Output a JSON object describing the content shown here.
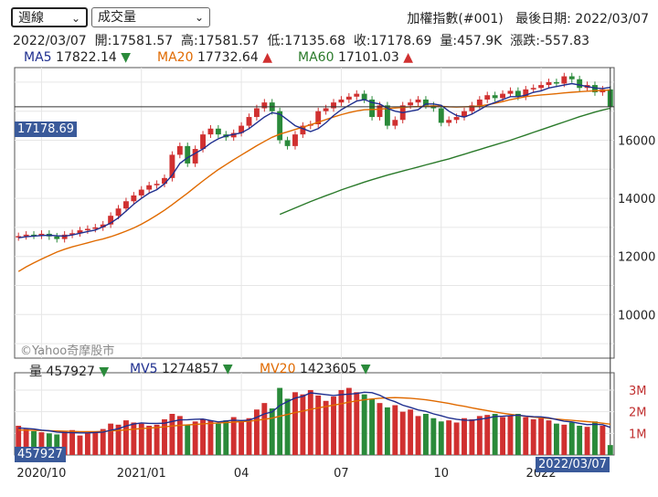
{
  "controls": {
    "period": "週線",
    "indicator": "成交量"
  },
  "header": {
    "index_name": "加權指數(#001)",
    "last_date_label": "最後日期:",
    "last_date": "2022/03/07"
  },
  "ohlc": {
    "date": "2022/03/07",
    "open_label": "開:",
    "open": "17581.57",
    "high_label": "高:",
    "high": "17581.57",
    "low_label": "低:",
    "low": "17135.68",
    "close_label": "收:",
    "close": "17178.69",
    "volume_label": "量:",
    "volume": "457.9K",
    "change_label": "漲跌:",
    "change": "-557.83"
  },
  "ma_legend": [
    {
      "name": "MA5",
      "value": "17822.14",
      "dir": "▼",
      "color": "#1f2f8f",
      "dir_color": "#2a8a3a"
    },
    {
      "name": "MA20",
      "value": "17732.64",
      "dir": "▲",
      "color": "#e06a00",
      "dir_color": "#d03030"
    },
    {
      "name": "MA60",
      "value": "17101.03",
      "dir": "▲",
      "color": "#2a7a2a",
      "dir_color": "#d03030"
    }
  ],
  "vol_legend": [
    {
      "name": "量",
      "value": "457927",
      "dir": "▼",
      "color": "#222",
      "dir_color": "#2a8a3a"
    },
    {
      "name": "MV5",
      "value": "1274857",
      "dir": "▼",
      "color": "#1f2f8f",
      "dir_color": "#2a8a3a"
    },
    {
      "name": "MV20",
      "value": "1423605",
      "dir": "▼",
      "color": "#e06a00",
      "dir_color": "#2a8a3a"
    }
  ],
  "watermark": "©Yahoo奇摩股市",
  "price_label": "17178.69",
  "vol_label": "457927",
  "date_label": "2022/03/07",
  "colors": {
    "up": "#d03030",
    "down": "#2a8a3a",
    "ma5": "#1f2f8f",
    "ma20": "#e06a00",
    "ma60": "#2a7a2a"
  },
  "chart_data": {
    "type": "candlestick",
    "price_ylim": [
      8500,
      18500
    ],
    "price_ticks": [
      10000,
      12000,
      14000,
      16000
    ],
    "volume_ylim": [
      0,
      3800000
    ],
    "volume_ticks": [
      "1M",
      "2M",
      "3M"
    ],
    "volume_tick_values": [
      1000000,
      2000000,
      3000000
    ],
    "x_ticks": [
      {
        "label": "2020/10",
        "index": 3
      },
      {
        "label": "2021/01",
        "index": 16
      },
      {
        "label": "04",
        "index": 29
      },
      {
        "label": "07",
        "index": 42
      },
      {
        "label": "10",
        "index": 55
      },
      {
        "label": "2022",
        "index": 68
      }
    ],
    "close": [
      12700,
      12750,
      12720,
      12780,
      12690,
      12600,
      12750,
      12800,
      12900,
      12950,
      13000,
      13100,
      13400,
      13650,
      13900,
      14100,
      14300,
      14450,
      14500,
      14700,
      15500,
      15800,
      15200,
      15700,
      16200,
      16400,
      16200,
      16100,
      16250,
      16500,
      16800,
      17100,
      17300,
      17000,
      16000,
      15800,
      16200,
      16500,
      16550,
      17000,
      17100,
      17300,
      17400,
      17500,
      17600,
      17400,
      16800,
      17200,
      16500,
      16700,
      17200,
      17300,
      17400,
      17200,
      17100,
      16600,
      16700,
      16800,
      17000,
      17200,
      17400,
      17550,
      17450,
      17600,
      17700,
      17500,
      17750,
      17800,
      17900,
      18000,
      17950,
      18200,
      18100,
      17800,
      17900,
      17650,
      17750,
      17150
    ],
    "ma5": [
      12640,
      12680,
      12700,
      12720,
      12730,
      12710,
      12700,
      12740,
      12800,
      12860,
      12910,
      13020,
      13150,
      13330,
      13560,
      13800,
      14000,
      14180,
      14300,
      14500,
      14800,
      15200,
      15400,
      15550,
      15700,
      15900,
      16050,
      16150,
      16200,
      16250,
      16400,
      16600,
      16800,
      16950,
      16900,
      16700,
      16500,
      16400,
      16300,
      16400,
      16600,
      16850,
      17050,
      17200,
      17350,
      17400,
      17300,
      17250,
      17100,
      17000,
      16950,
      17000,
      17050,
      17250,
      17250,
      17200,
      17000,
      16850,
      16800,
      16900,
      17050,
      17200,
      17300,
      17400,
      17500,
      17500,
      17550,
      17650,
      17700,
      17800,
      17850,
      17900,
      17950,
      17900,
      17850,
      17800,
      17780,
      17822
    ],
    "ma20": [
      11480,
      11640,
      11780,
      11910,
      12030,
      12150,
      12250,
      12330,
      12400,
      12470,
      12540,
      12600,
      12680,
      12770,
      12870,
      12980,
      13110,
      13260,
      13420,
      13590,
      13780,
      13980,
      14180,
      14390,
      14600,
      14800,
      14990,
      15160,
      15330,
      15490,
      15650,
      15810,
      15960,
      16100,
      16210,
      16290,
      16370,
      16450,
      16530,
      16620,
      16710,
      16800,
      16880,
      16950,
      17010,
      17050,
      17060,
      17070,
      17090,
      17110,
      17130,
      17150,
      17160,
      17170,
      17180,
      17170,
      17150,
      17140,
      17150,
      17160,
      17180,
      17220,
      17270,
      17330,
      17400,
      17450,
      17500,
      17530,
      17560,
      17580,
      17600,
      17630,
      17650,
      17670,
      17690,
      17700,
      17715,
      17733
    ],
    "ma60": [
      null,
      null,
      null,
      null,
      null,
      null,
      null,
      null,
      null,
      null,
      null,
      null,
      null,
      null,
      null,
      null,
      null,
      null,
      null,
      null,
      null,
      null,
      null,
      null,
      null,
      null,
      null,
      null,
      null,
      null,
      null,
      null,
      null,
      null,
      13450,
      13560,
      13670,
      13780,
      13890,
      13990,
      14090,
      14190,
      14290,
      14380,
      14470,
      14560,
      14640,
      14720,
      14800,
      14870,
      14940,
      15010,
      15080,
      15150,
      15220,
      15290,
      15360,
      15440,
      15520,
      15600,
      15680,
      15760,
      15840,
      15920,
      16000,
      16090,
      16180,
      16270,
      16360,
      16450,
      16540,
      16630,
      16720,
      16810,
      16890,
      16970,
      17040,
      17101
    ],
    "volume": [
      1350000,
      1200000,
      1100000,
      1050000,
      1000000,
      950000,
      1100000,
      1150000,
      900000,
      1000000,
      1050000,
      1200000,
      1450000,
      1400000,
      1600000,
      1500000,
      1450000,
      1350000,
      1400000,
      1650000,
      1900000,
      1800000,
      1400000,
      1550000,
      1650000,
      1600000,
      1450000,
      1600000,
      1750000,
      1550000,
      1700000,
      2100000,
      2400000,
      2150000,
      3100000,
      2600000,
      2900000,
      2800000,
      3000000,
      2750000,
      2500000,
      2700000,
      3000000,
      3100000,
      2900000,
      2800000,
      2600000,
      2400000,
      2200000,
      2300000,
      2000000,
      2100000,
      1800000,
      1900000,
      1700000,
      1550000,
      1600000,
      1500000,
      1700000,
      1650000,
      1800000,
      1850000,
      1900000,
      1750000,
      1800000,
      1900000,
      1750000,
      1650000,
      1700000,
      1600000,
      1450000,
      1400000,
      1500000,
      1350000,
      1300000,
      1550000,
      1350000,
      457927
    ],
    "mv5": [
      1250000,
      1230000,
      1200000,
      1150000,
      1120000,
      1060000,
      1040000,
      1030000,
      1020000,
      1020000,
      1040000,
      1060000,
      1140000,
      1210000,
      1340000,
      1430000,
      1480000,
      1460000,
      1460000,
      1470000,
      1550000,
      1620000,
      1630000,
      1650000,
      1660000,
      1590000,
      1530000,
      1570000,
      1610000,
      1590000,
      1610000,
      1740000,
      1900000,
      1990000,
      2290000,
      2470000,
      2630000,
      2710000,
      2870000,
      2830000,
      2790000,
      2750000,
      2790000,
      2810000,
      2840000,
      2900000,
      2880000,
      2760000,
      2580000,
      2460000,
      2300000,
      2200000,
      2080000,
      2020000,
      1900000,
      1810000,
      1710000,
      1650000,
      1610000,
      1600000,
      1650000,
      1700000,
      1780000,
      1790000,
      1820000,
      1840000,
      1800000,
      1770000,
      1760000,
      1720000,
      1640000,
      1560000,
      1530000,
      1460000,
      1400000,
      1420000,
      1400000,
      1275000
    ],
    "mv20": [
      1150000,
      1150000,
      1140000,
      1130000,
      1120000,
      1110000,
      1100000,
      1090000,
      1080000,
      1080000,
      1080000,
      1090000,
      1110000,
      1130000,
      1160000,
      1190000,
      1220000,
      1240000,
      1270000,
      1300000,
      1340000,
      1370000,
      1390000,
      1410000,
      1440000,
      1460000,
      1480000,
      1500000,
      1520000,
      1540000,
      1560000,
      1600000,
      1650000,
      1700000,
      1790000,
      1870000,
      1960000,
      2030000,
      2110000,
      2180000,
      2240000,
      2300000,
      2370000,
      2440000,
      2500000,
      2550000,
      2590000,
      2620000,
      2640000,
      2650000,
      2640000,
      2620000,
      2590000,
      2550000,
      2500000,
      2440000,
      2380000,
      2310000,
      2250000,
      2180000,
      2110000,
      2050000,
      1990000,
      1930000,
      1880000,
      1830000,
      1790000,
      1750000,
      1720000,
      1690000,
      1660000,
      1630000,
      1600000,
      1570000,
      1540000,
      1510000,
      1470000,
      1423605
    ]
  }
}
